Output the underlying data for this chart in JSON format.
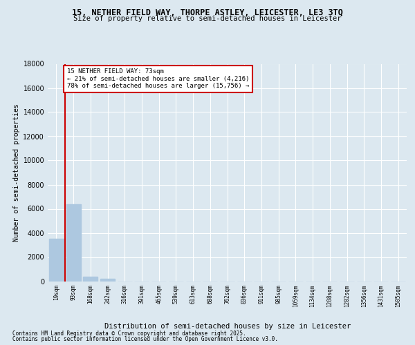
{
  "title_line1": "15, NETHER FIELD WAY, THORPE ASTLEY, LEICESTER, LE3 3TQ",
  "title_line2": "Size of property relative to semi-detached houses in Leicester",
  "xlabel": "Distribution of semi-detached houses by size in Leicester",
  "ylabel": "Number of semi-detached properties",
  "categories": [
    "19sqm",
    "93sqm",
    "168sqm",
    "242sqm",
    "316sqm",
    "391sqm",
    "465sqm",
    "539sqm",
    "613sqm",
    "688sqm",
    "762sqm",
    "836sqm",
    "911sqm",
    "985sqm",
    "1059sqm",
    "1134sqm",
    "1208sqm",
    "1282sqm",
    "1356sqm",
    "1431sqm",
    "1505sqm"
  ],
  "values": [
    3500,
    6400,
    400,
    175,
    0,
    0,
    0,
    0,
    0,
    0,
    0,
    0,
    0,
    0,
    0,
    0,
    0,
    0,
    0,
    0,
    0
  ],
  "bar_color": "#adc8e0",
  "annotation_title": "15 NETHER FIELD WAY: 73sqm",
  "annotation_line1": "← 21% of semi-detached houses are smaller (4,216)",
  "annotation_line2": "78% of semi-detached houses are larger (15,756) →",
  "ylim": [
    0,
    18000
  ],
  "yticks": [
    0,
    2000,
    4000,
    6000,
    8000,
    10000,
    12000,
    14000,
    16000,
    18000
  ],
  "footer_line1": "Contains HM Land Registry data © Crown copyright and database right 2025.",
  "footer_line2": "Contains public sector information licensed under the Open Government Licence v3.0.",
  "background_color": "#dce8f0",
  "grid_color": "#ffffff",
  "red_line_color": "#cc0000"
}
